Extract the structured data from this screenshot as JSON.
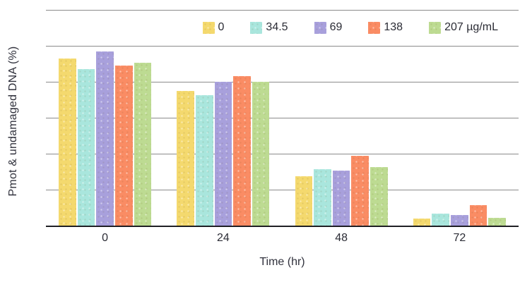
{
  "chart_data": {
    "type": "bar",
    "title": "",
    "ylabel": "Pmot & undamaged DNA (%)",
    "xlabel": "Time (hr)",
    "categories": [
      "0",
      "24",
      "48",
      "72"
    ],
    "series": [
      {
        "name": "0",
        "color": "#F4D96E",
        "values": [
          93,
          75,
          27.5,
          4
        ]
      },
      {
        "name": "34.5",
        "color": "#A9E6DD",
        "values": [
          87,
          72.5,
          31.5,
          6.5
        ]
      },
      {
        "name": "69",
        "color": "#A8A0DC",
        "values": [
          97,
          80,
          30.5,
          6
        ]
      },
      {
        "name": "138",
        "color": "#FA8C64",
        "values": [
          89,
          83,
          39,
          11.5
        ]
      },
      {
        "name": "207 µg/mL",
        "color": "#BDDB92",
        "values": [
          90.5,
          80,
          32.5,
          4.5
        ]
      }
    ],
    "ylim": [
      0,
      120
    ],
    "gridline_step": 20,
    "grid": true,
    "legend_position": "top-right",
    "y_tick_labels_shown": false,
    "colors": {
      "gridline": "#8b8b8b",
      "axis_line": "#1f1f24",
      "text": "#2b2c35",
      "background": "#ffffff"
    }
  }
}
